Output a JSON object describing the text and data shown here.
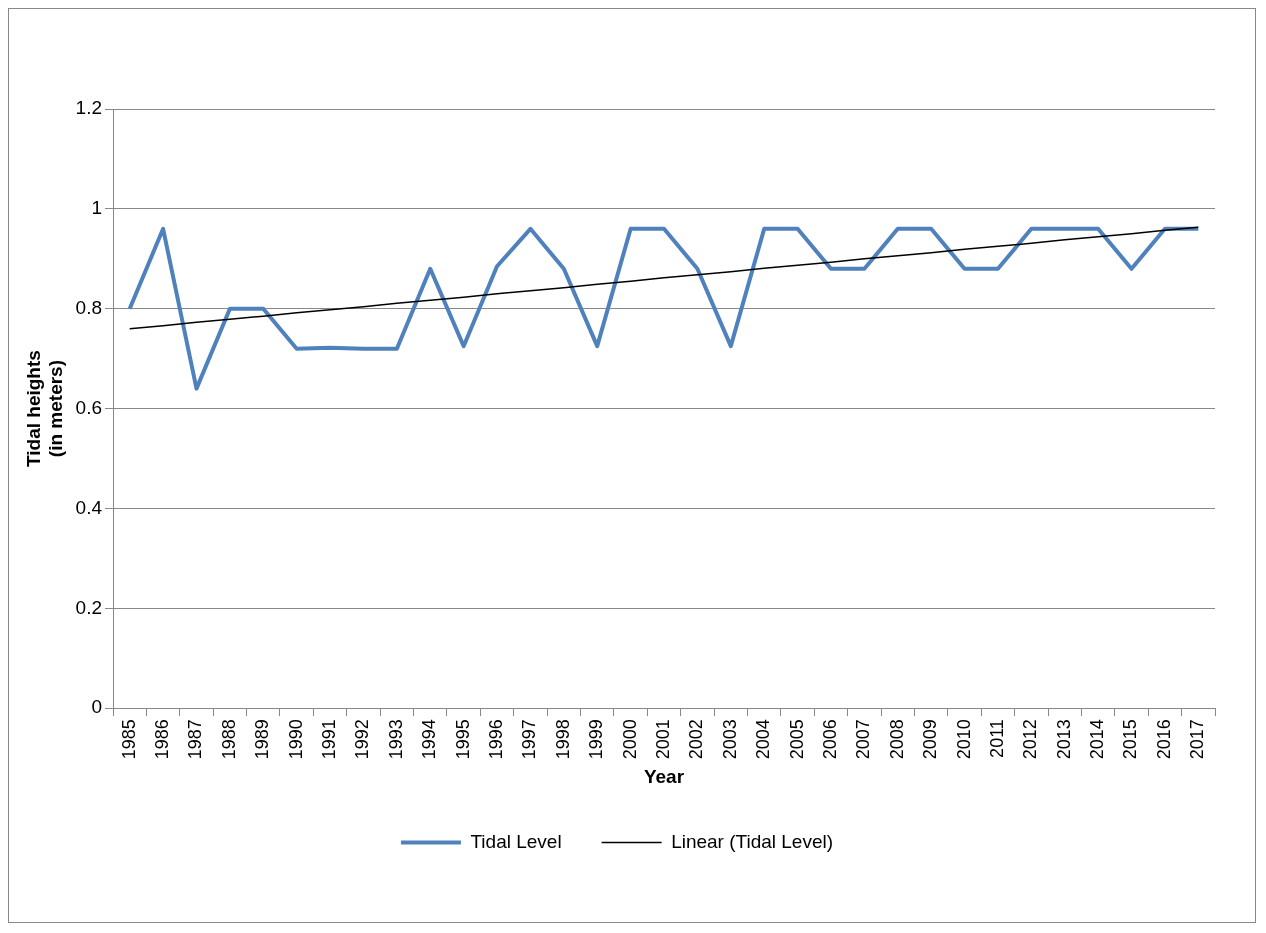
{
  "chart_data": {
    "type": "line",
    "xlabel": "Year",
    "ylabel": "Tidal heights\n(in meters)",
    "categories": [
      "1985",
      "1986",
      "1987",
      "1988",
      "1989",
      "1990",
      "1991",
      "1992",
      "1993",
      "1994",
      "1995",
      "1996",
      "1997",
      "1998",
      "1999",
      "2000",
      "2001",
      "2002",
      "2003",
      "2004",
      "2005",
      "2006",
      "2007",
      "2008",
      "2009",
      "2010",
      "2011",
      "2012",
      "2013",
      "2014",
      "2015",
      "2016",
      "2017"
    ],
    "series": [
      {
        "name": "Tidal Level",
        "color": "#4f81bd",
        "values": [
          0.8,
          0.96,
          0.64,
          0.8,
          0.8,
          0.72,
          0.722,
          0.72,
          0.72,
          0.88,
          0.725,
          0.885,
          0.96,
          0.88,
          0.725,
          0.96,
          0.96,
          0.88,
          0.725,
          0.96,
          0.96,
          0.88,
          0.88,
          0.96,
          0.96,
          0.88,
          0.88,
          0.96,
          0.96,
          0.96,
          0.88,
          0.96,
          0.96
        ]
      },
      {
        "name": "Linear (Tidal Level)",
        "type": "line",
        "color": "#000000",
        "values": [
          0.76,
          0.766,
          0.773,
          0.779,
          0.785,
          0.792,
          0.798,
          0.804,
          0.811,
          0.817,
          0.823,
          0.83,
          0.836,
          0.842,
          0.849,
          0.855,
          0.862,
          0.868,
          0.874,
          0.881,
          0.887,
          0.893,
          0.9,
          0.906,
          0.912,
          0.919,
          0.925,
          0.931,
          0.938,
          0.944,
          0.95,
          0.957,
          0.963
        ]
      }
    ],
    "ylim": [
      0,
      1.2
    ],
    "yticks": [
      0,
      0.2,
      0.4,
      0.6,
      0.8,
      1,
      1.2
    ],
    "grid": "y",
    "legend": "bottom",
    "marker": "none",
    "line_style": "solid"
  }
}
